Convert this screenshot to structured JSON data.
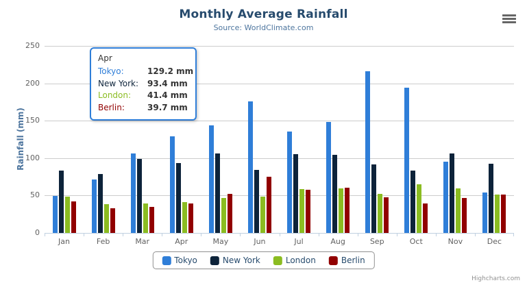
{
  "title": "Monthly Average Rainfall",
  "subtitle": "Source: WorldClimate.com",
  "credits": "Highcharts.com",
  "icons": {
    "export_menu": "hamburger-icon"
  },
  "colors": {
    "title": "#274b6d",
    "subtitle": "#4d759e",
    "axis_labels": "#606060",
    "axis_title": "#4d759e",
    "gridline": "#cccccc",
    "axis_line": "#c0d0e0",
    "legend_border": "#909090",
    "legend_text": "#274b6d",
    "tooltip_border": "#2f7ed8",
    "credits": "#909090"
  },
  "chart_data": {
    "type": "bar",
    "title": "Monthly Average Rainfall",
    "subtitle": "Source: WorldClimate.com",
    "categories": [
      "Jan",
      "Feb",
      "Mar",
      "Apr",
      "May",
      "Jun",
      "Jul",
      "Aug",
      "Sep",
      "Oct",
      "Nov",
      "Dec"
    ],
    "series": [
      {
        "name": "Tokyo",
        "color": "#2f7ed8",
        "values": [
          49.9,
          71.5,
          106.4,
          129.2,
          144.0,
          176.0,
          135.6,
          148.5,
          216.4,
          194.1,
          95.6,
          54.4
        ]
      },
      {
        "name": "New York",
        "color": "#0d233a",
        "values": [
          83.6,
          78.8,
          98.5,
          93.4,
          106.0,
          84.5,
          105.0,
          104.3,
          91.2,
          83.5,
          106.6,
          92.3
        ]
      },
      {
        "name": "London",
        "color": "#8bbc21",
        "values": [
          48.9,
          38.8,
          39.3,
          41.4,
          47.0,
          48.3,
          59.0,
          59.6,
          52.4,
          65.2,
          59.3,
          51.2
        ]
      },
      {
        "name": "Berlin",
        "color": "#910000",
        "values": [
          42.4,
          33.2,
          34.5,
          39.7,
          52.6,
          75.5,
          57.4,
          60.4,
          47.6,
          39.1,
          46.8,
          51.1
        ]
      }
    ],
    "xlabel": "",
    "ylabel": "Rainfall (mm)",
    "ylim": [
      0,
      250
    ],
    "yticks": [
      0,
      50,
      100,
      150,
      200,
      250
    ],
    "grid": true,
    "legend_position": "bottom"
  },
  "yaxis": {
    "title": "Rainfall (mm)",
    "labels": [
      "0",
      "50",
      "100",
      "150",
      "200",
      "250"
    ]
  },
  "legend": {
    "items": [
      {
        "label": "Tokyo",
        "color": "#2f7ed8"
      },
      {
        "label": "New York",
        "color": "#0d233a"
      },
      {
        "label": "London",
        "color": "#8bbc21"
      },
      {
        "label": "Berlin",
        "color": "#910000"
      }
    ]
  },
  "tooltip": {
    "category": "Apr",
    "rows": [
      {
        "label": "Tokyo:",
        "value": "129.2 mm",
        "color": "#2f7ed8"
      },
      {
        "label": "New York:",
        "value": "93.4 mm",
        "color": "#0d233a"
      },
      {
        "label": "London:",
        "value": "41.4 mm",
        "color": "#8bbc21"
      },
      {
        "label": "Berlin:",
        "value": "39.7 mm",
        "color": "#910000"
      }
    ]
  }
}
